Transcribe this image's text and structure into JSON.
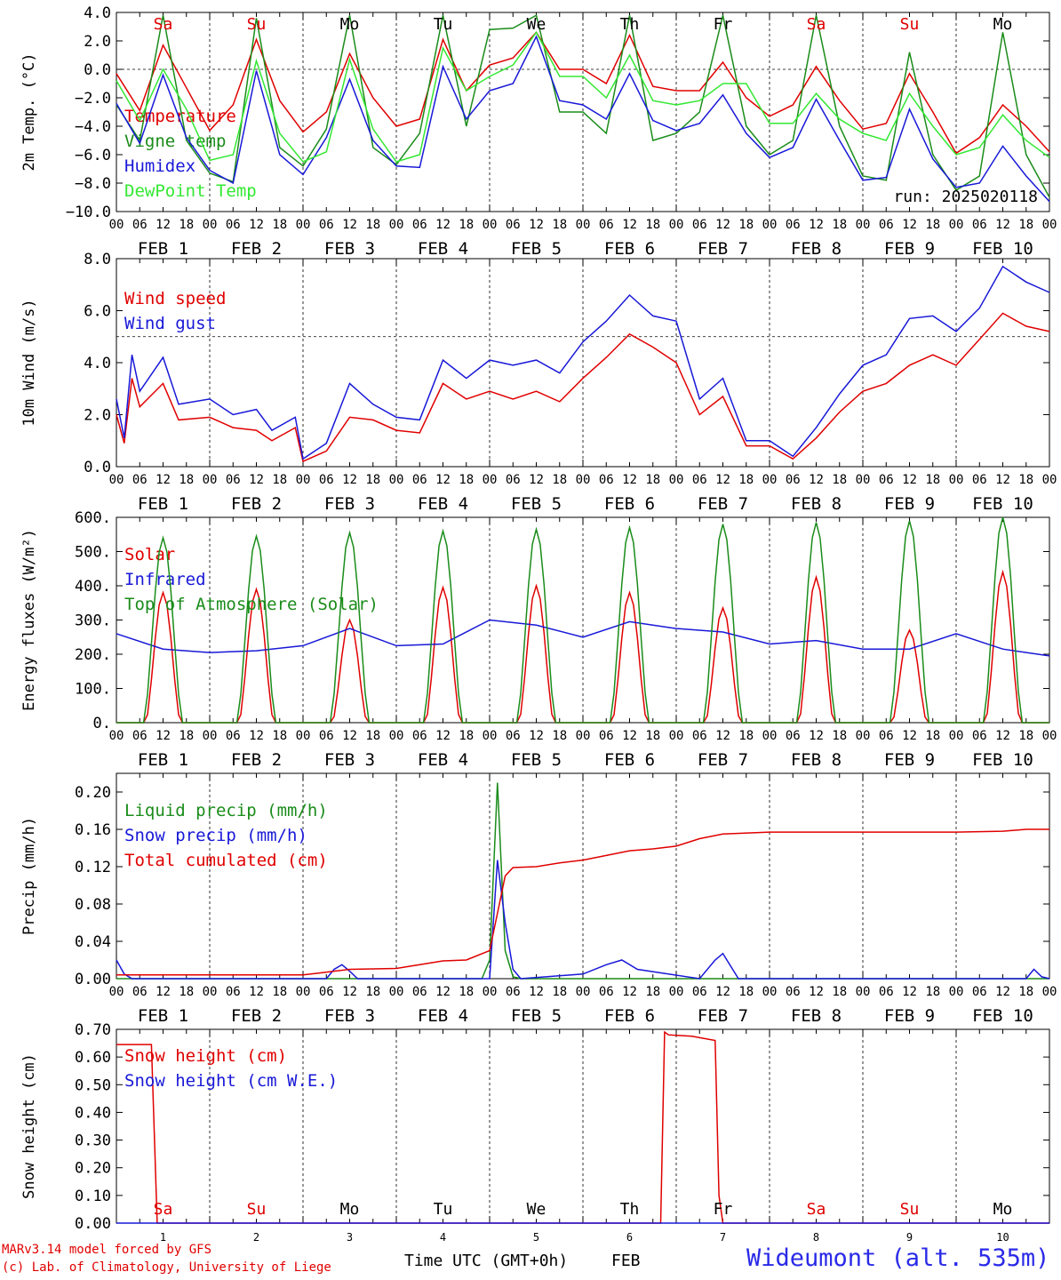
{
  "run_label": "run: 2025020118",
  "x_axis_title": "Time UTC (GMT+0h)",
  "x_axis_month": "FEB",
  "credits": [
    "MARv3.14 model forced by GFS",
    "(c) Lab. of Climatology, University of Liege"
  ],
  "station": "Wideumont (alt. 535m)",
  "day_labels": [
    {
      "text": "Sa",
      "color": "#e00000"
    },
    {
      "text": "Su",
      "color": "#e00000"
    },
    {
      "text": "Mo",
      "color": "#000000"
    },
    {
      "text": "Tu",
      "color": "#000000"
    },
    {
      "text": "We",
      "color": "#000000"
    },
    {
      "text": "Th",
      "color": "#000000"
    },
    {
      "text": "Fr",
      "color": "#000000"
    },
    {
      "text": "Sa",
      "color": "#e00000"
    },
    {
      "text": "Su",
      "color": "#e00000"
    },
    {
      "text": "Mo",
      "color": "#000000"
    }
  ],
  "date_labels": [
    "FEB  1",
    "FEB  2",
    "FEB  3",
    "FEB  4",
    "FEB  5",
    "FEB  6",
    "FEB  7",
    "FEB  8",
    "FEB  9",
    "FEB 10"
  ],
  "hour_ticks": [
    "00",
    "06",
    "12",
    "18"
  ],
  "day_numbers": [
    "1",
    "2",
    "3",
    "4",
    "5",
    "6",
    "7",
    "8",
    "9",
    "10"
  ],
  "chart_data": [
    {
      "type": "line",
      "ylabel": "2m Temp. (°C)",
      "ylim": [
        -10,
        4
      ],
      "yticks": [
        {
          "v": 4,
          "t": "4.0"
        },
        {
          "v": 2,
          "t": "2.0"
        },
        {
          "v": 0,
          "t": "0.0"
        },
        {
          "v": -2,
          "t": "−2.0"
        },
        {
          "v": -4,
          "t": "−4.0"
        },
        {
          "v": -6,
          "t": "−6.0"
        },
        {
          "v": -8,
          "t": "−8.0"
        },
        {
          "v": -10,
          "t": "−10.0"
        }
      ],
      "ref_line": 0,
      "x_unit": "hours since 2025-02-01 00 UTC",
      "series": [
        {
          "name": "Temperature",
          "color": "#e00000",
          "x": [
            0,
            6,
            12,
            18,
            24,
            30,
            36,
            42,
            48,
            54,
            60,
            66,
            72,
            78,
            84,
            90,
            96,
            102,
            108,
            114,
            120,
            126,
            132,
            138,
            144,
            150,
            156,
            162,
            168,
            174,
            180,
            186,
            192,
            198,
            204,
            210,
            216,
            222,
            228,
            234,
            240
          ],
          "values": [
            -0.3,
            -2.9,
            1.7,
            -1.3,
            -4.3,
            -2.5,
            2.1,
            -2.2,
            -4.4,
            -3.0,
            1.1,
            -2.0,
            -4.0,
            -3.5,
            2.1,
            -1.5,
            0.3,
            0.8,
            2.6,
            0.0,
            0.0,
            -1.0,
            2.4,
            -1.2,
            -1.5,
            -1.5,
            0.5,
            -2.0,
            -3.3,
            -2.5,
            0.2,
            -2.2,
            -4.2,
            -3.8,
            -0.3,
            -3.0,
            -5.9,
            -4.8,
            -2.5,
            -4.0,
            -5.8
          ]
        },
        {
          "name": "Vigne temp",
          "color": "#1a8c1a",
          "x": [
            0,
            6,
            12,
            18,
            24,
            30,
            36,
            42,
            48,
            54,
            60,
            66,
            72,
            78,
            84,
            90,
            96,
            102,
            108,
            114,
            120,
            126,
            132,
            138,
            144,
            150,
            156,
            162,
            168,
            174,
            180,
            186,
            192,
            198,
            204,
            210,
            216,
            222,
            228,
            234,
            240
          ],
          "values": [
            -2.5,
            -5.0,
            3.8,
            -5.0,
            -7.3,
            -7.9,
            3.6,
            -5.5,
            -6.8,
            -4.2,
            3.8,
            -5.5,
            -6.7,
            -4.5,
            3.8,
            -4.0,
            2.8,
            2.9,
            3.8,
            -3.0,
            -3.0,
            -4.5,
            3.8,
            -5.0,
            -4.5,
            -3.0,
            3.8,
            -4.0,
            -6.0,
            -5.0,
            3.8,
            -4.0,
            -7.5,
            -7.8,
            1.2,
            -6.0,
            -8.5,
            -7.5,
            2.6,
            -6.0,
            -9.0
          ]
        },
        {
          "name": "Humidex",
          "color": "#1818d8",
          "x": [
            0,
            6,
            12,
            18,
            24,
            30,
            36,
            42,
            48,
            54,
            60,
            66,
            72,
            78,
            84,
            90,
            96,
            102,
            108,
            114,
            120,
            126,
            132,
            138,
            144,
            150,
            156,
            162,
            168,
            174,
            180,
            186,
            192,
            198,
            204,
            210,
            216,
            222,
            228,
            234,
            240
          ],
          "values": [
            -2.4,
            -5.2,
            -0.4,
            -4.8,
            -7.1,
            -8.0,
            -0.1,
            -6.0,
            -7.4,
            -4.8,
            -0.7,
            -5.0,
            -6.8,
            -6.9,
            0.2,
            -3.5,
            -1.5,
            -1.0,
            2.3,
            -2.2,
            -2.5,
            -3.5,
            -0.3,
            -3.6,
            -4.3,
            -3.8,
            -1.8,
            -4.5,
            -6.2,
            -5.5,
            -2.1,
            -5.0,
            -7.8,
            -7.6,
            -2.8,
            -6.3,
            -8.3,
            -8.0,
            -5.4,
            -7.5,
            -9.3
          ]
        },
        {
          "name": "DewPoint Temp",
          "color": "#33e833",
          "x": [
            0,
            6,
            12,
            18,
            24,
            30,
            36,
            42,
            48,
            54,
            60,
            66,
            72,
            78,
            84,
            90,
            96,
            102,
            108,
            114,
            120,
            126,
            132,
            138,
            144,
            150,
            156,
            162,
            168,
            174,
            180,
            186,
            192,
            198,
            204,
            210,
            216,
            222,
            228,
            234,
            240
          ],
          "values": [
            -0.8,
            -3.6,
            0.0,
            -2.8,
            -6.4,
            -6.0,
            0.6,
            -4.5,
            -6.5,
            -5.8,
            0.7,
            -4.2,
            -6.5,
            -6.0,
            1.5,
            -1.5,
            -0.5,
            0.3,
            2.6,
            -0.5,
            -0.5,
            -2.0,
            1.0,
            -2.2,
            -2.5,
            -2.2,
            -1.0,
            -1.0,
            -3.8,
            -3.8,
            -1.7,
            -3.5,
            -4.5,
            -5.0,
            -1.7,
            -4.0,
            -6.0,
            -5.5,
            -3.2,
            -5.0,
            -6.2
          ]
        }
      ],
      "legend": "upper-left",
      "grid": "vertical dotted at 00 UTC"
    },
    {
      "type": "line",
      "ylabel": "10m Wind (m/s)",
      "ylim": [
        0,
        8
      ],
      "yticks": [
        {
          "v": 8,
          "t": "8.0"
        },
        {
          "v": 6,
          "t": "6.0"
        },
        {
          "v": 4,
          "t": "4.0"
        },
        {
          "v": 2,
          "t": "2.0"
        },
        {
          "v": 0,
          "t": "0.0"
        }
      ],
      "ref_line": 5,
      "x_unit": "hours since 2025-02-01 00 UTC",
      "series": [
        {
          "name": "Wind speed",
          "color": "#e00000",
          "x": [
            0,
            2,
            4,
            6,
            12,
            16,
            24,
            30,
            36,
            40,
            46,
            48,
            54,
            60,
            66,
            72,
            78,
            84,
            90,
            96,
            102,
            108,
            114,
            120,
            126,
            132,
            138,
            144,
            150,
            156,
            162,
            168,
            174,
            180,
            186,
            192,
            198,
            204,
            210,
            216,
            222,
            228,
            234,
            240
          ],
          "values": [
            2.0,
            0.9,
            3.4,
            2.3,
            3.2,
            1.8,
            1.9,
            1.5,
            1.4,
            1.0,
            1.5,
            0.2,
            0.6,
            1.9,
            1.8,
            1.4,
            1.3,
            3.2,
            2.6,
            2.9,
            2.6,
            2.9,
            2.5,
            3.4,
            4.2,
            5.1,
            4.6,
            4.0,
            2.0,
            2.7,
            0.8,
            0.8,
            0.3,
            1.1,
            2.1,
            2.9,
            3.2,
            3.9,
            4.3,
            3.9,
            4.9,
            5.9,
            5.4,
            5.2
          ]
        },
        {
          "name": "Wind gust",
          "color": "#1818d8",
          "x": [
            0,
            2,
            4,
            6,
            12,
            16,
            24,
            30,
            36,
            40,
            46,
            48,
            54,
            60,
            66,
            72,
            78,
            84,
            90,
            96,
            102,
            108,
            114,
            120,
            126,
            132,
            138,
            144,
            150,
            156,
            162,
            168,
            174,
            180,
            186,
            192,
            198,
            204,
            210,
            216,
            222,
            228,
            234,
            240
          ],
          "values": [
            2.6,
            1.1,
            4.3,
            2.9,
            4.2,
            2.4,
            2.6,
            2.0,
            2.2,
            1.4,
            1.9,
            0.3,
            0.9,
            3.2,
            2.4,
            1.9,
            1.8,
            4.1,
            3.4,
            4.1,
            3.9,
            4.1,
            3.6,
            4.8,
            5.6,
            6.6,
            5.8,
            5.6,
            2.6,
            3.4,
            1.0,
            1.0,
            0.4,
            1.5,
            2.8,
            3.9,
            4.3,
            5.7,
            5.8,
            5.2,
            6.1,
            7.7,
            7.1,
            6.7
          ]
        }
      ],
      "legend": "upper-left"
    },
    {
      "type": "line",
      "ylabel": "Energy fluxes (W/m²)",
      "ylim": [
        0,
        600
      ],
      "yticks": [
        {
          "v": 600,
          "t": "600."
        },
        {
          "v": 500,
          "t": "500."
        },
        {
          "v": 400,
          "t": "400."
        },
        {
          "v": 300,
          "t": "300."
        },
        {
          "v": 200,
          "t": "200."
        },
        {
          "v": 100,
          "t": "100."
        },
        {
          "v": 0,
          "t": "0."
        }
      ],
      "x_unit": "hours since 2025-02-01 00 UTC",
      "diurnal": {
        "peaks_hour": 12,
        "solar_peaks": [
          380,
          390,
          300,
          395,
          400,
          380,
          335,
          425,
          270,
          440
        ],
        "toa_peaks": [
          540,
          545,
          555,
          560,
          565,
          570,
          580,
          585,
          590,
          600
        ],
        "solar_window": [
          7.5,
          16.5
        ],
        "toa_window": [
          7,
          17
        ]
      },
      "series": [
        {
          "name": "Solar",
          "color": "#e00000"
        },
        {
          "name": "Infrared",
          "color": "#1818d8",
          "x": [
            0,
            12,
            24,
            36,
            48,
            60,
            72,
            84,
            96,
            108,
            120,
            132,
            144,
            156,
            168,
            180,
            192,
            204,
            216,
            228,
            240
          ],
          "values": [
            260,
            215,
            205,
            210,
            225,
            275,
            225,
            230,
            300,
            285,
            250,
            295,
            275,
            265,
            230,
            240,
            215,
            215,
            260,
            215,
            195
          ]
        },
        {
          "name": "Top of Atmosphere (Solar)",
          "color": "#1a8c1a"
        }
      ],
      "legend": "upper-left"
    },
    {
      "type": "line",
      "ylabel": "Precip (mm/h)",
      "ylim": [
        0,
        0.22
      ],
      "yticks": [
        {
          "v": 0.2,
          "t": "0.20"
        },
        {
          "v": 0.16,
          "t": "0.16"
        },
        {
          "v": 0.12,
          "t": "0.12"
        },
        {
          "v": 0.08,
          "t": "0.08"
        },
        {
          "v": 0.04,
          "t": "0.04"
        },
        {
          "v": 0,
          "t": "0.00"
        }
      ],
      "x_unit": "hours since 2025-02-01 00 UTC",
      "series": [
        {
          "name": "Liquid precip (mm/h)",
          "color": "#1a8c1a",
          "x": [
            0,
            94,
            96,
            98,
            100,
            102,
            104,
            110,
            240
          ],
          "values": [
            0,
            0,
            0.02,
            0.21,
            0.03,
            0.002,
            0,
            0,
            0
          ]
        },
        {
          "name": "Snow precip (mm/h)",
          "color": "#1818d8",
          "x": [
            0,
            2,
            4,
            54,
            56,
            58,
            60,
            62,
            96,
            98,
            100,
            102,
            104,
            120,
            126,
            130,
            134,
            150,
            154,
            156,
            160,
            210,
            234,
            236,
            238,
            240
          ],
          "values": [
            0.02,
            0.005,
            0,
            0,
            0.01,
            0.015,
            0.008,
            0,
            0,
            0.127,
            0.06,
            0.01,
            0,
            0.005,
            0.015,
            0.02,
            0.01,
            0,
            0.02,
            0.027,
            0,
            0,
            0,
            0.01,
            0.002,
            0
          ]
        },
        {
          "name": "Total cumulated (cm)",
          "color": "#e00000",
          "x": [
            0,
            48,
            52,
            60,
            72,
            78,
            84,
            90,
            96,
            98,
            100,
            102,
            108,
            114,
            120,
            126,
            132,
            138,
            144,
            150,
            156,
            168,
            180,
            192,
            204,
            216,
            228,
            234,
            240
          ],
          "values": [
            0.004,
            0.004,
            0.006,
            0.01,
            0.011,
            0.015,
            0.019,
            0.02,
            0.03,
            0.07,
            0.11,
            0.119,
            0.12,
            0.124,
            0.127,
            0.132,
            0.137,
            0.139,
            0.142,
            0.15,
            0.155,
            0.157,
            0.157,
            0.157,
            0.157,
            0.157,
            0.158,
            0.16,
            0.16
          ]
        }
      ],
      "legend": "upper-left"
    },
    {
      "type": "line",
      "ylabel": "Snow height (cm)",
      "ylim": [
        0,
        0.7
      ],
      "yticks": [
        {
          "v": 0.7,
          "t": "0.70"
        },
        {
          "v": 0.6,
          "t": "0.60"
        },
        {
          "v": 0.5,
          "t": "0.50"
        },
        {
          "v": 0.4,
          "t": "0.40"
        },
        {
          "v": 0.3,
          "t": "0.30"
        },
        {
          "v": 0.2,
          "t": "0.20"
        },
        {
          "v": 0.1,
          "t": "0.10"
        },
        {
          "v": 0,
          "t": "0.00"
        }
      ],
      "x_unit": "hours since 2025-02-01 00 UTC",
      "series": [
        {
          "name": "Snow height (cm)",
          "color": "#e00000",
          "x": [
            0,
            9,
            10.5,
            140,
            141,
            142,
            148,
            154,
            155,
            156,
            240
          ],
          "values": [
            0.645,
            0.645,
            0,
            0,
            0.69,
            0.68,
            0.675,
            0.66,
            0.1,
            0,
            0
          ]
        },
        {
          "name": "Snow height (cm W.E.)",
          "color": "#1818d8",
          "x": [
            0,
            240
          ],
          "values": [
            0,
            0
          ]
        }
      ],
      "legend": "upper-left"
    }
  ]
}
